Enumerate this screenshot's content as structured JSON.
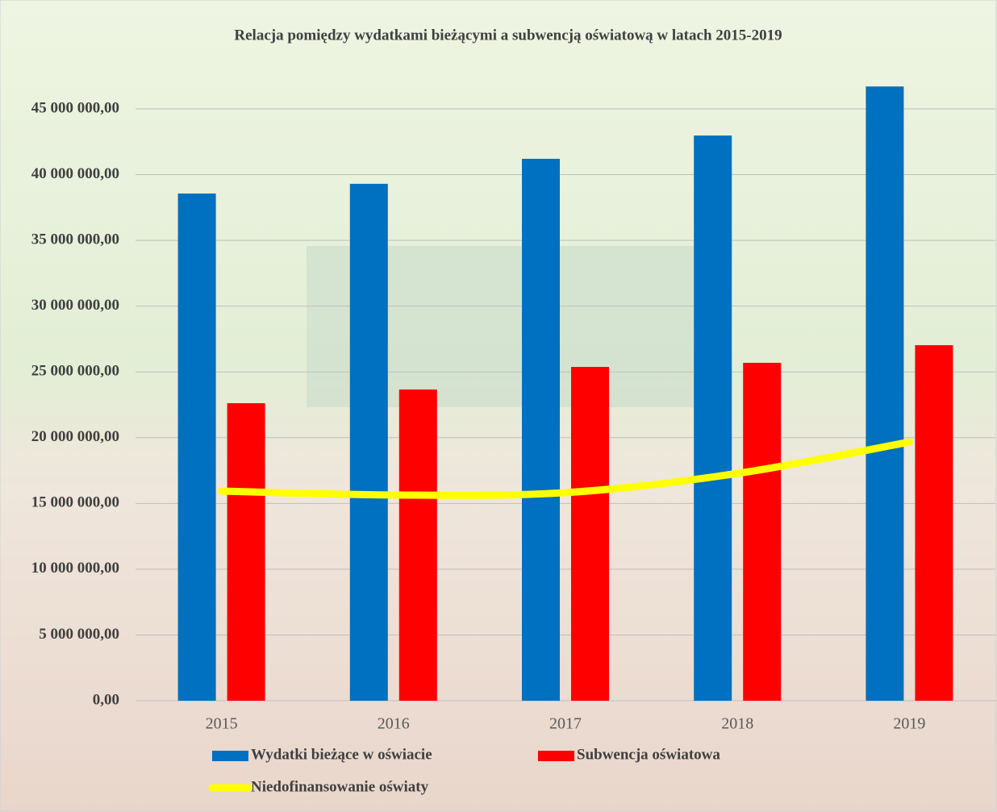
{
  "chart_data": {
    "type": "bar",
    "title": "Relacja pomiędzy wydatkami bieżącymi a subwencją oświatową w latach 2015-2019",
    "categories": [
      "2015",
      "2016",
      "2017",
      "2018",
      "2019"
    ],
    "series": [
      {
        "name": "Wydatki bieżące w oświacie",
        "color": "#0070c0",
        "values": [
          38560000,
          39300000,
          41200000,
          42970000,
          46700000
        ]
      },
      {
        "name": "Subwencja oświatowa",
        "color": "#ff0000",
        "values": [
          22620000,
          23660000,
          25380000,
          25690000,
          27030000
        ]
      },
      {
        "name": "Niedofinansowanie oświaty",
        "color": "#ffff00",
        "type": "line",
        "values": [
          15940000,
          15640000,
          15820000,
          17280000,
          19670000
        ]
      }
    ],
    "ylim": [
      0,
      50000000
    ],
    "yticks": [
      {
        "value": 0,
        "label": "0,00"
      },
      {
        "value": 5000000,
        "label": "5 000 000,00"
      },
      {
        "value": 10000000,
        "label": "10 000 000,00"
      },
      {
        "value": 15000000,
        "label": "15 000 000,00"
      },
      {
        "value": 20000000,
        "label": "20 000 000,00"
      },
      {
        "value": 25000000,
        "label": "25 000 000,00"
      },
      {
        "value": 30000000,
        "label": "30 000 000,00"
      },
      {
        "value": 35000000,
        "label": "35 000 000,00"
      },
      {
        "value": 40000000,
        "label": "40 000 000,00"
      },
      {
        "value": 45000000,
        "label": "45 000 000,00"
      }
    ],
    "grid": true,
    "legend": "bottom"
  }
}
